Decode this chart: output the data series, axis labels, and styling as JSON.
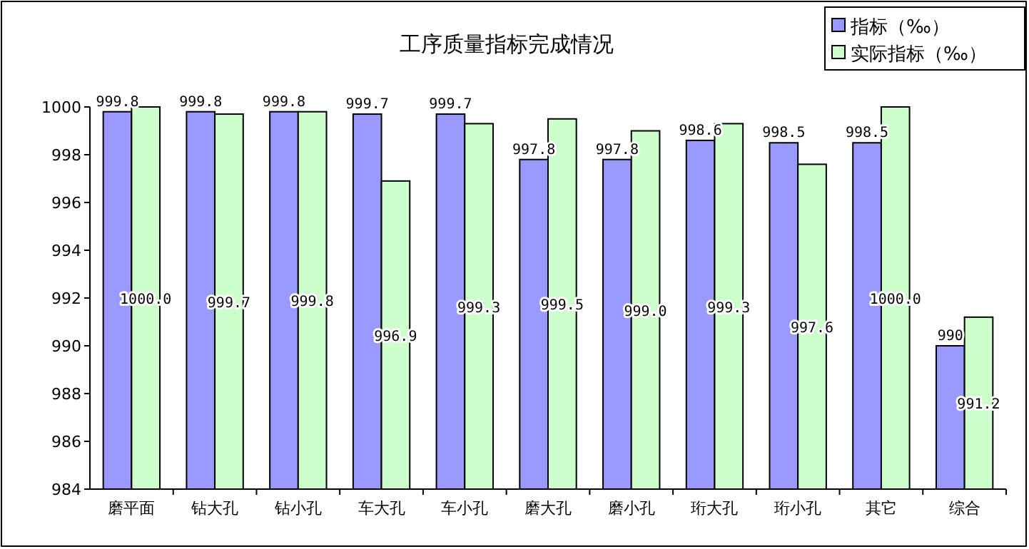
{
  "chart_data": {
    "type": "bar",
    "title": "工序质量指标完成情况",
    "categories": [
      "磨平面",
      "钻大孔",
      "钻小孔",
      "车大孔",
      "车小孔",
      "磨大孔",
      "磨小孔",
      "珩大孔",
      "珩小孔",
      "其它",
      "综合"
    ],
    "series": [
      {
        "name": "指标（‰）",
        "color": "#9999ff",
        "values": [
          999.8,
          999.8,
          999.8,
          999.7,
          999.7,
          997.8,
          997.8,
          998.6,
          998.5,
          998.5,
          990
        ],
        "value_labels": [
          "999.8",
          "999.8",
          "999.8",
          "999.7",
          "999.7",
          "997.8",
          "997.8",
          "998.6",
          "998.5",
          "998.5",
          "990"
        ]
      },
      {
        "name": "实际指标（‰）",
        "color": "#ccffcc",
        "values": [
          1000.0,
          999.7,
          999.8,
          996.9,
          999.3,
          999.5,
          999.0,
          999.3,
          997.6,
          1000.0,
          991.2
        ],
        "value_labels": [
          "1000.0",
          "999.7",
          "999.8",
          "996.9",
          "999.3",
          "999.5",
          "999.0",
          "999.3",
          "997.6",
          "1000.0",
          "991.2"
        ]
      }
    ],
    "ylim": [
      984,
      1000
    ],
    "yticks": [
      984,
      986,
      988,
      990,
      992,
      994,
      996,
      998,
      1000
    ],
    "grid": false,
    "legend": "top right"
  }
}
